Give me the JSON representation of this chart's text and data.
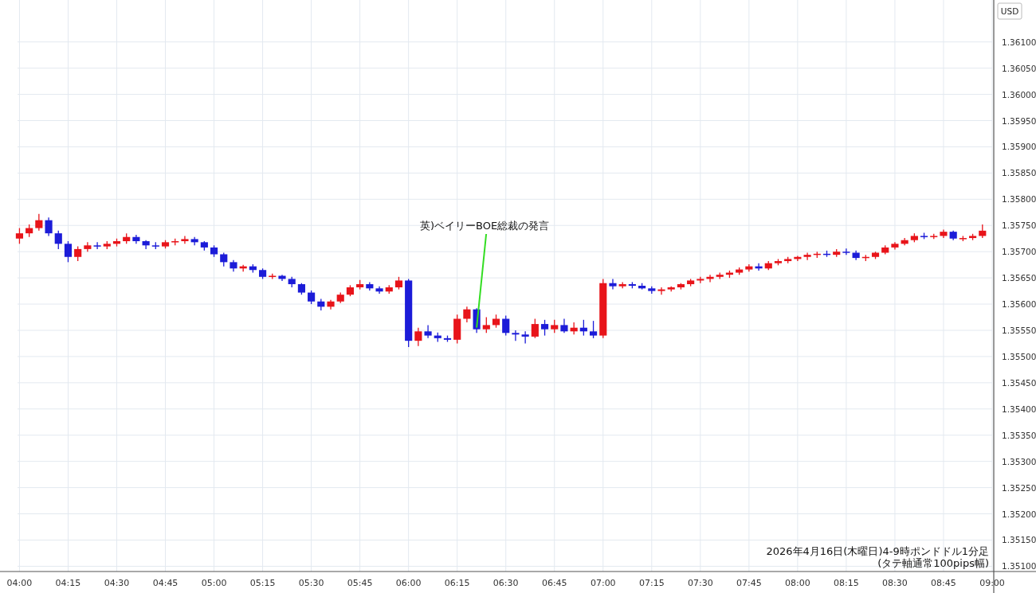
{
  "chart_data": {
    "type": "candlestick",
    "ylabel": "USD",
    "annotations": [
      {
        "text": "英)ベイリーBOE総裁の発言",
        "x": 6.35,
        "y": 1.35555
      },
      "2026年4月16日(木曜日)4-9時ポンドドル1分足",
      "(タテ軸通常100pips幅)"
    ],
    "x": [
      4.0,
      4.05,
      4.1,
      4.15,
      4.2,
      4.25,
      4.3,
      4.35,
      4.4,
      4.45,
      4.5,
      4.55,
      4.6,
      4.65,
      4.7,
      4.75,
      4.8,
      4.85,
      4.9,
      4.95,
      5.0,
      5.05,
      5.1,
      5.15,
      5.2,
      5.25,
      5.3,
      5.35,
      5.4,
      5.45,
      5.5,
      5.55,
      5.6,
      5.65,
      5.7,
      5.75,
      5.8,
      5.85,
      5.9,
      5.95,
      6.0,
      6.05,
      6.1,
      6.15,
      6.2,
      6.25,
      6.3,
      6.35,
      6.4,
      6.45,
      6.5,
      6.55,
      6.6,
      6.65,
      6.7,
      6.75,
      6.8,
      6.85,
      6.9,
      6.95,
      7.0,
      7.05,
      7.1,
      7.15,
      7.2,
      7.25,
      7.3,
      7.35,
      7.4,
      7.45,
      7.5,
      7.55,
      7.6,
      7.65,
      7.7,
      7.75,
      7.8,
      7.85,
      7.9,
      7.95,
      8.0,
      8.05,
      8.1,
      8.15,
      8.2,
      8.25,
      8.3,
      8.35,
      8.4,
      8.45,
      8.5,
      8.55,
      8.6,
      8.65,
      8.7,
      8.75,
      8.8,
      8.85,
      8.9,
      8.95
    ],
    "ohlc": [
      [
        1.35725,
        1.35745,
        1.35715,
        1.35735
      ],
      [
        1.35735,
        1.35752,
        1.35728,
        1.35745
      ],
      [
        1.35745,
        1.35772,
        1.3574,
        1.3576
      ],
      [
        1.3576,
        1.35765,
        1.3573,
        1.35735
      ],
      [
        1.35735,
        1.3574,
        1.35705,
        1.35715
      ],
      [
        1.35715,
        1.3572,
        1.3568,
        1.3569
      ],
      [
        1.3569,
        1.3571,
        1.35682,
        1.35705
      ],
      [
        1.35705,
        1.35718,
        1.357,
        1.35712
      ],
      [
        1.35712,
        1.35718,
        1.35705,
        1.3571
      ],
      [
        1.3571,
        1.3572,
        1.35705,
        1.35715
      ],
      [
        1.35715,
        1.35725,
        1.3571,
        1.3572
      ],
      [
        1.3572,
        1.35735,
        1.35715,
        1.35728
      ],
      [
        1.35728,
        1.35732,
        1.35715,
        1.3572
      ],
      [
        1.3572,
        1.35722,
        1.35705,
        1.35712
      ],
      [
        1.35712,
        1.35718,
        1.35705,
        1.3571
      ],
      [
        1.3571,
        1.35722,
        1.35706,
        1.35718
      ],
      [
        1.35718,
        1.35725,
        1.35712,
        1.3572
      ],
      [
        1.3572,
        1.3573,
        1.35715,
        1.35724
      ],
      [
        1.35724,
        1.35728,
        1.35712,
        1.35718
      ],
      [
        1.35718,
        1.3572,
        1.35702,
        1.35708
      ],
      [
        1.35708,
        1.35712,
        1.3569,
        1.35695
      ],
      [
        1.35695,
        1.35698,
        1.35672,
        1.3568
      ],
      [
        1.3568,
        1.35684,
        1.35662,
        1.35668
      ],
      [
        1.35668,
        1.35675,
        1.35662,
        1.35672
      ],
      [
        1.35672,
        1.35676,
        1.3566,
        1.35665
      ],
      [
        1.35665,
        1.35668,
        1.35648,
        1.35652
      ],
      [
        1.35652,
        1.35658,
        1.35648,
        1.35654
      ],
      [
        1.35654,
        1.35656,
        1.35644,
        1.35648
      ],
      [
        1.35648,
        1.35652,
        1.35632,
        1.35638
      ],
      [
        1.35638,
        1.3564,
        1.35618,
        1.35622
      ],
      [
        1.35622,
        1.35626,
        1.356,
        1.35605
      ],
      [
        1.35605,
        1.3561,
        1.35588,
        1.35595
      ],
      [
        1.35595,
        1.35608,
        1.3559,
        1.35605
      ],
      [
        1.35605,
        1.35622,
        1.35602,
        1.35618
      ],
      [
        1.35618,
        1.35636,
        1.35615,
        1.35632
      ],
      [
        1.35632,
        1.35646,
        1.35628,
        1.35638
      ],
      [
        1.35638,
        1.35642,
        1.35626,
        1.3563
      ],
      [
        1.3563,
        1.35634,
        1.3562,
        1.35624
      ],
      [
        1.35624,
        1.35636,
        1.3562,
        1.35632
      ],
      [
        1.35632,
        1.35652,
        1.35628,
        1.35645
      ],
      [
        1.35645,
        1.35648,
        1.35518,
        1.3553
      ],
      [
        1.3553,
        1.35555,
        1.3552,
        1.35548
      ],
      [
        1.35548,
        1.3556,
        1.35535,
        1.3554
      ],
      [
        1.3554,
        1.35546,
        1.35528,
        1.35535
      ],
      [
        1.35535,
        1.3554,
        1.35528,
        1.35532
      ],
      [
        1.35532,
        1.3558,
        1.35525,
        1.35572
      ],
      [
        1.35572,
        1.35595,
        1.35565,
        1.3559
      ],
      [
        1.3559,
        1.35592,
        1.35545,
        1.35552
      ],
      [
        1.35552,
        1.35575,
        1.35545,
        1.3556
      ],
      [
        1.3556,
        1.3558,
        1.35555,
        1.35572
      ],
      [
        1.35572,
        1.35578,
        1.3554,
        1.35545
      ],
      [
        1.35545,
        1.3555,
        1.3553,
        1.35542
      ],
      [
        1.35542,
        1.35548,
        1.35525,
        1.35538
      ],
      [
        1.35538,
        1.35572,
        1.35535,
        1.35562
      ],
      [
        1.35562,
        1.3557,
        1.3554,
        1.35552
      ],
      [
        1.35552,
        1.3557,
        1.35545,
        1.3556
      ],
      [
        1.3556,
        1.35572,
        1.35545,
        1.35548
      ],
      [
        1.35548,
        1.35565,
        1.35542,
        1.35555
      ],
      [
        1.35555,
        1.3557,
        1.3554,
        1.35548
      ],
      [
        1.35548,
        1.35568,
        1.35535,
        1.3554
      ],
      [
        1.3554,
        1.35648,
        1.35535,
        1.3564
      ],
      [
        1.3564,
        1.35648,
        1.35628,
        1.35634
      ],
      [
        1.35634,
        1.35642,
        1.3563,
        1.35638
      ],
      [
        1.35638,
        1.35642,
        1.3563,
        1.35635
      ],
      [
        1.35635,
        1.3564,
        1.35628,
        1.3563
      ],
      [
        1.3563,
        1.35634,
        1.3562,
        1.35625
      ],
      [
        1.35625,
        1.35632,
        1.35618,
        1.35628
      ],
      [
        1.35628,
        1.35634,
        1.35624,
        1.35632
      ],
      [
        1.35632,
        1.3564,
        1.35628,
        1.35638
      ],
      [
        1.35638,
        1.35648,
        1.35634,
        1.35645
      ],
      [
        1.35645,
        1.35652,
        1.3564,
        1.35648
      ],
      [
        1.35648,
        1.35656,
        1.35642,
        1.35652
      ],
      [
        1.35652,
        1.3566,
        1.35648,
        1.35656
      ],
      [
        1.35656,
        1.35664,
        1.3565,
        1.3566
      ],
      [
        1.3566,
        1.3567,
        1.35656,
        1.35666
      ],
      [
        1.35666,
        1.35676,
        1.35662,
        1.35672
      ],
      [
        1.35672,
        1.35678,
        1.35664,
        1.35668
      ],
      [
        1.35668,
        1.35682,
        1.35665,
        1.35678
      ],
      [
        1.35678,
        1.35686,
        1.35674,
        1.35682
      ],
      [
        1.35682,
        1.3569,
        1.35678,
        1.35686
      ],
      [
        1.35686,
        1.35692,
        1.35682,
        1.3569
      ],
      [
        1.3569,
        1.35698,
        1.35684,
        1.35694
      ],
      [
        1.35694,
        1.357,
        1.35688,
        1.35696
      ],
      [
        1.35696,
        1.35702,
        1.3569,
        1.35694
      ],
      [
        1.35694,
        1.35705,
        1.3569,
        1.357
      ],
      [
        1.357,
        1.35706,
        1.35694,
        1.35698
      ],
      [
        1.35698,
        1.35702,
        1.35684,
        1.35688
      ],
      [
        1.35688,
        1.35694,
        1.35682,
        1.3569
      ],
      [
        1.3569,
        1.357,
        1.35686,
        1.35698
      ],
      [
        1.35698,
        1.35712,
        1.35695,
        1.35708
      ],
      [
        1.35708,
        1.35718,
        1.35704,
        1.35715
      ],
      [
        1.35715,
        1.35726,
        1.35712,
        1.35722
      ],
      [
        1.35722,
        1.35735,
        1.35718,
        1.3573
      ],
      [
        1.3573,
        1.35736,
        1.35724,
        1.35728
      ],
      [
        1.35728,
        1.35734,
        1.35724,
        1.3573
      ],
      [
        1.3573,
        1.35742,
        1.35726,
        1.35738
      ],
      [
        1.35738,
        1.3574,
        1.35722,
        1.35725
      ],
      [
        1.35725,
        1.3573,
        1.3572,
        1.35726
      ],
      [
        1.35726,
        1.35734,
        1.35722,
        1.3573
      ],
      [
        1.3573,
        1.35752,
        1.35726,
        1.3574
      ]
    ],
    "xlim": [
      3.99,
      9.0
    ],
    "xticks": [
      {
        "value": 4,
        "label": "04:00"
      },
      {
        "value": 4.25,
        "label": "04:15"
      },
      {
        "value": 4.5,
        "label": "04:30"
      },
      {
        "value": 4.75,
        "label": "04:45"
      },
      {
        "value": 5,
        "label": "05:00"
      },
      {
        "value": 5.25,
        "label": "05:15"
      },
      {
        "value": 5.5,
        "label": "05:30"
      },
      {
        "value": 5.75,
        "label": "05:45"
      },
      {
        "value": 6,
        "label": "06:00"
      },
      {
        "value": 6.25,
        "label": "06:15"
      },
      {
        "value": 6.5,
        "label": "06:30"
      },
      {
        "value": 6.75,
        "label": "06:45"
      },
      {
        "value": 7,
        "label": "07:00"
      },
      {
        "value": 7.25,
        "label": "07:15"
      },
      {
        "value": 7.5,
        "label": "07:30"
      },
      {
        "value": 7.75,
        "label": "07:45"
      },
      {
        "value": 8,
        "label": "08:00"
      },
      {
        "value": 8.25,
        "label": "08:15"
      },
      {
        "value": 8.5,
        "label": "08:30"
      },
      {
        "value": 8.75,
        "label": "08:45"
      },
      {
        "value": 9,
        "label": "09:00"
      }
    ],
    "ylim": [
      1.3509,
      1.3618
    ],
    "yticks": [
      {
        "value": 1.351,
        "label": "1.35100"
      },
      {
        "value": 1.3515,
        "label": "1.35150"
      },
      {
        "value": 1.352,
        "label": "1.35200"
      },
      {
        "value": 1.3525,
        "label": "1.35250"
      },
      {
        "value": 1.353,
        "label": "1.35300"
      },
      {
        "value": 1.3535,
        "label": "1.35350"
      },
      {
        "value": 1.354,
        "label": "1.35400"
      },
      {
        "value": 1.3545,
        "label": "1.35450"
      },
      {
        "value": 1.355,
        "label": "1.35500"
      },
      {
        "value": 1.3555,
        "label": "1.35550"
      },
      {
        "value": 1.356,
        "label": "1.35600"
      },
      {
        "value": 1.3565,
        "label": "1.35650"
      },
      {
        "value": 1.357,
        "label": "1.35700"
      },
      {
        "value": 1.3575,
        "label": "1.35750"
      },
      {
        "value": 1.358,
        "label": "1.35800"
      },
      {
        "value": 1.3585,
        "label": "1.35850"
      },
      {
        "value": 1.359,
        "label": "1.35900"
      },
      {
        "value": 1.3595,
        "label": "1.35950"
      },
      {
        "value": 1.36,
        "label": "1.36000"
      },
      {
        "value": 1.3605,
        "label": "1.36050"
      },
      {
        "value": 1.361,
        "label": "1.36100"
      }
    ],
    "grid": true
  }
}
